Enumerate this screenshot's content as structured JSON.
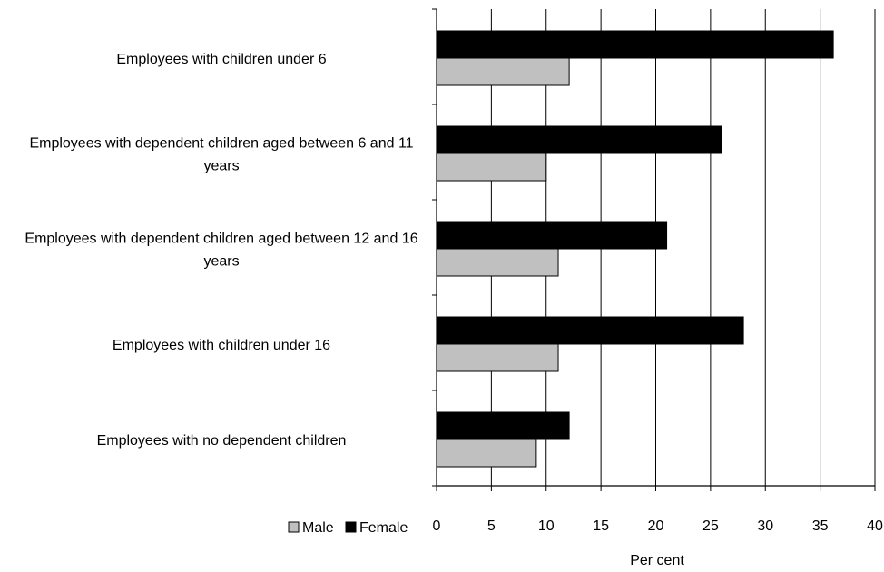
{
  "chart_data": {
    "type": "bar",
    "orientation": "horizontal",
    "title": "",
    "xlabel": "Per cent",
    "ylabel": "",
    "xlim": [
      0,
      40
    ],
    "xticks": [
      0,
      5,
      10,
      15,
      20,
      25,
      30,
      35,
      40
    ],
    "grid": "vertical",
    "legend_position": "bottom-left",
    "categories": [
      [
        "Employees with children under 6"
      ],
      [
        "Employees with dependent children aged between 6 and 11",
        "years"
      ],
      [
        "Employees with dependent children aged between 12 and 16",
        "years"
      ],
      [
        "Employees with children under 16"
      ],
      [
        "Employees with no dependent children"
      ]
    ],
    "series": [
      {
        "name": "Female",
        "color": "#000000",
        "values": [
          36.2,
          26.0,
          21.0,
          28.0,
          12.1
        ]
      },
      {
        "name": "Male",
        "color": "#c0c0c0",
        "values": [
          12.1,
          10.0,
          11.1,
          11.1,
          9.1
        ]
      }
    ],
    "legend": [
      {
        "name": "Male",
        "color": "#c0c0c0"
      },
      {
        "name": "Female",
        "color": "#000000"
      }
    ]
  }
}
